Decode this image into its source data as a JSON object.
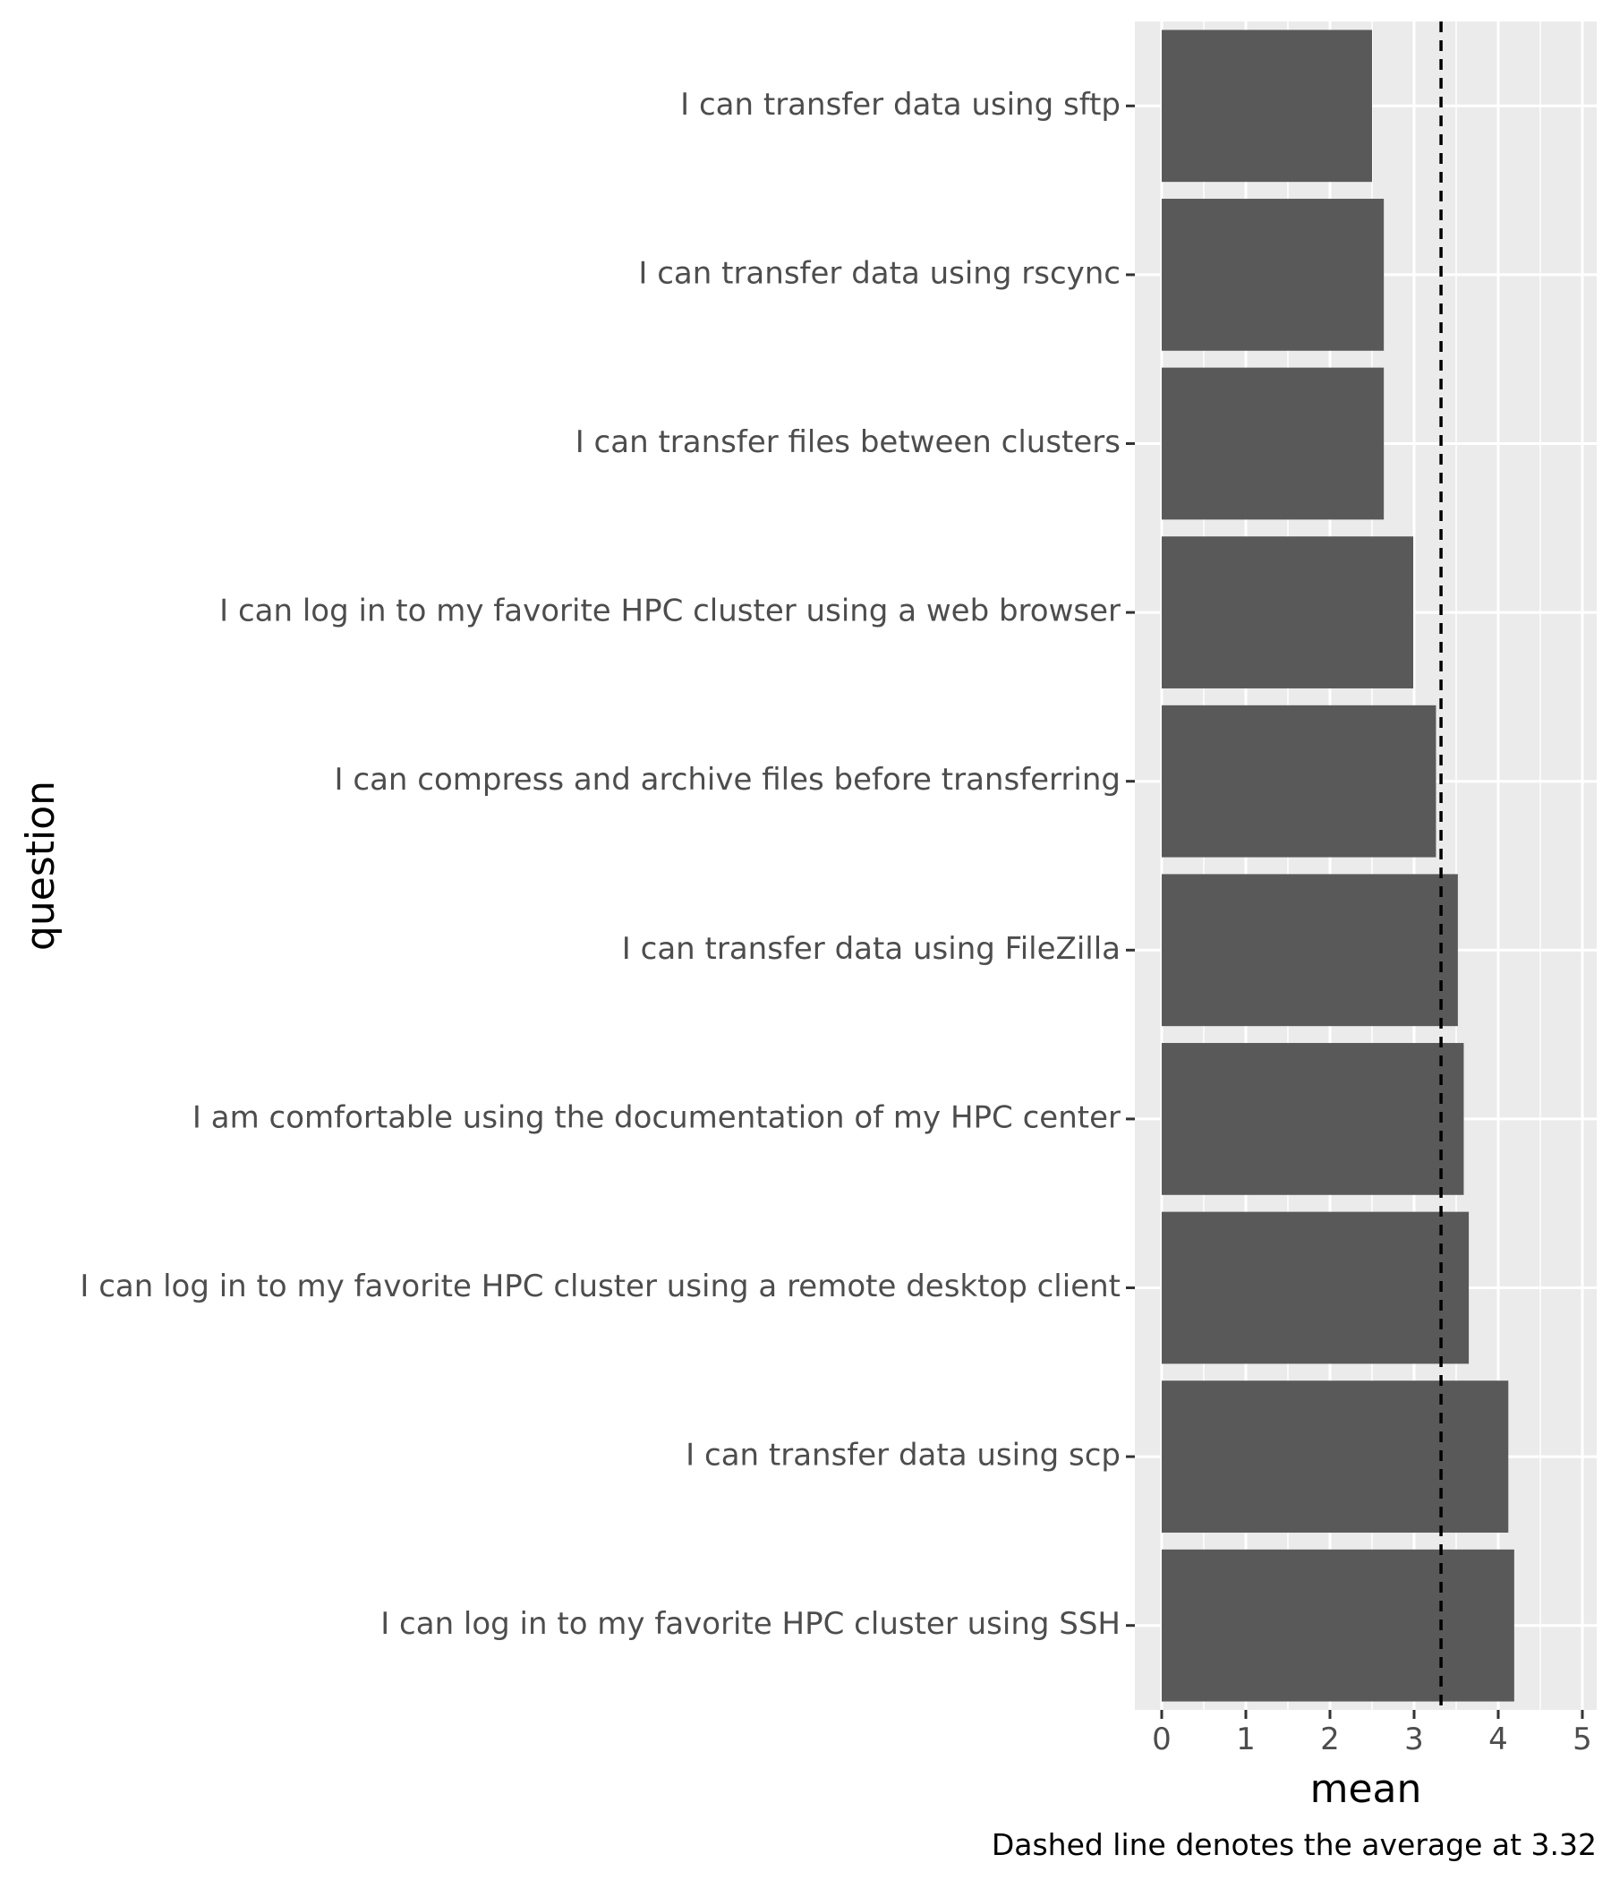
{
  "chart_data": {
    "type": "bar",
    "orientation": "horizontal",
    "categories": [
      "I can transfer data using sftp",
      "I can transfer data using rscync",
      "I can transfer files between clusters",
      "I can log in to my favorite HPC cluster using a web browser",
      "I can compress and archive files before transferring",
      "I can transfer data using FileZilla",
      "I am comfortable using the documentation of my HPC center",
      "I can log in to my favorite HPC cluster using a remote desktop client",
      "I can transfer data using scp",
      "I can log in to my favorite HPC cluster using SSH"
    ],
    "values": [
      2.5,
      2.64,
      2.64,
      2.99,
      3.26,
      3.52,
      3.59,
      3.65,
      4.12,
      4.19
    ],
    "reference_line": {
      "value": 3.32,
      "style": "dashed"
    },
    "title": "",
    "xlabel": "mean",
    "ylabel": "question",
    "xlim": [
      -0.25,
      5.25
    ],
    "xticks": [
      "0",
      "1",
      "2",
      "3",
      "4",
      "5"
    ],
    "caption": "Dashed line denotes the average at 3.32",
    "grid": true,
    "colors": {
      "bar": "#595959",
      "panel_background": "#ebebeb",
      "grid": "#ffffff",
      "reference_line": "#000000"
    }
  }
}
